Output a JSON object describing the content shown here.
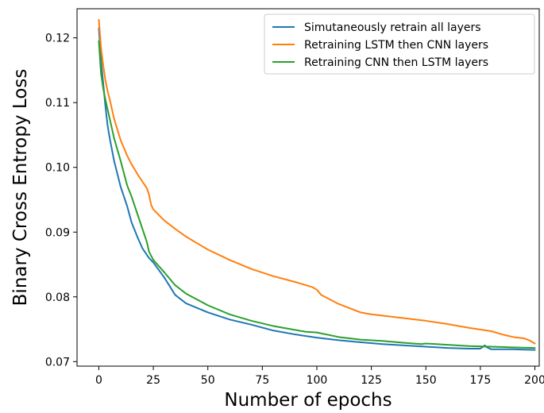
{
  "chart_data": {
    "type": "line",
    "title": "",
    "xlabel": "Number of epochs",
    "ylabel": "Binary Cross Entropy Loss",
    "xlim": [
      -10,
      202
    ],
    "ylim": [
      0.0693,
      0.1245
    ],
    "x_ticks": [
      0,
      25,
      50,
      75,
      100,
      125,
      150,
      175,
      200
    ],
    "x_tick_labels": [
      "0",
      "25",
      "50",
      "75",
      "100",
      "125",
      "150",
      "175",
      "200"
    ],
    "y_ticks": [
      0.07,
      0.08,
      0.09,
      0.1,
      0.11,
      0.12
    ],
    "y_tick_labels": [
      "0.07",
      "0.08",
      "0.09",
      "0.10",
      "0.11",
      "0.12"
    ],
    "grid": false,
    "legend_position": "top-right",
    "series": [
      {
        "name": "Simutaneously retrain all layers",
        "color": "#1f77b4",
        "x": [
          0,
          1,
          2,
          3,
          4,
          5,
          7,
          10,
          13,
          15,
          18,
          20,
          23,
          25,
          30,
          35,
          40,
          50,
          60,
          70,
          80,
          90,
          100,
          110,
          120,
          130,
          140,
          150,
          160,
          170,
          175,
          177,
          178,
          180,
          185,
          190,
          200
        ],
        "values": [
          0.1215,
          0.1165,
          0.113,
          0.1095,
          0.1065,
          0.1045,
          0.101,
          0.097,
          0.094,
          0.0915,
          0.089,
          0.0875,
          0.086,
          0.0853,
          0.083,
          0.0803,
          0.079,
          0.0776,
          0.0765,
          0.0757,
          0.0748,
          0.0742,
          0.0737,
          0.0733,
          0.073,
          0.0727,
          0.0725,
          0.0723,
          0.0721,
          0.072,
          0.072,
          0.0725,
          0.0722,
          0.0719,
          0.0719,
          0.0719,
          0.0718
        ]
      },
      {
        "name": "Retraining LSTM then CNN layers",
        "color": "#ff7f0e",
        "x": [
          0,
          1,
          2,
          3,
          4,
          5,
          7,
          10,
          13,
          15,
          18,
          20,
          22,
          23,
          24,
          25,
          30,
          35,
          40,
          50,
          60,
          70,
          80,
          90,
          98,
          100,
          102,
          110,
          120,
          125,
          130,
          140,
          150,
          160,
          165,
          170,
          180,
          185,
          190,
          195,
          198,
          200
        ],
        "values": [
          0.1228,
          0.1185,
          0.1158,
          0.1135,
          0.1118,
          0.1105,
          0.1075,
          0.1042,
          0.1018,
          0.1005,
          0.0988,
          0.0978,
          0.0968,
          0.0958,
          0.0942,
          0.0935,
          0.0918,
          0.0905,
          0.0893,
          0.0873,
          0.0857,
          0.0843,
          0.0832,
          0.0823,
          0.0815,
          0.0811,
          0.0803,
          0.0789,
          0.0776,
          0.0773,
          0.0771,
          0.0767,
          0.0763,
          0.0758,
          0.0755,
          0.0752,
          0.0747,
          0.0742,
          0.0738,
          0.0736,
          0.0732,
          0.0728
        ]
      },
      {
        "name": "Retraining CNN then LSTM layers",
        "color": "#2ca02c",
        "x": [
          0,
          1,
          2,
          3,
          4,
          5,
          7,
          10,
          13,
          15,
          18,
          20,
          22,
          23,
          25,
          30,
          35,
          40,
          50,
          60,
          70,
          80,
          90,
          95,
          100,
          110,
          120,
          130,
          140,
          148,
          150,
          160,
          170,
          180,
          190,
          200
        ],
        "values": [
          0.1195,
          0.1145,
          0.1122,
          0.1105,
          0.109,
          0.1075,
          0.1045,
          0.101,
          0.0972,
          0.0955,
          0.0925,
          0.0905,
          0.0885,
          0.087,
          0.0857,
          0.0838,
          0.0818,
          0.0805,
          0.0787,
          0.0773,
          0.0763,
          0.0755,
          0.0749,
          0.0746,
          0.0745,
          0.0738,
          0.0734,
          0.0732,
          0.0729,
          0.0727,
          0.0728,
          0.0726,
          0.0724,
          0.0723,
          0.0722,
          0.0721
        ]
      }
    ]
  }
}
